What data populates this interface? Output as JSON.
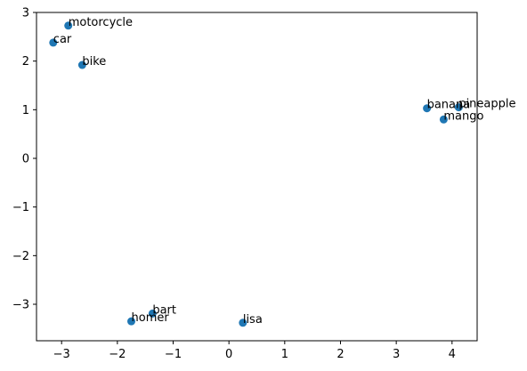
{
  "chart_data": {
    "type": "scatter",
    "title": "",
    "xlabel": "",
    "ylabel": "",
    "xlim": [
      -3.45,
      4.45
    ],
    "ylim": [
      -3.75,
      3.0
    ],
    "xticks": [
      -3,
      -2,
      -1,
      0,
      1,
      2,
      3,
      4
    ],
    "yticks": [
      -3,
      -2,
      -1,
      0,
      1,
      2,
      3
    ],
    "grid": false,
    "marker_color": "#1f77b4",
    "points": [
      {
        "x": -2.88,
        "y": 2.73,
        "label": "motorcycle"
      },
      {
        "x": -3.15,
        "y": 2.38,
        "label": "car"
      },
      {
        "x": -2.63,
        "y": 1.92,
        "label": "bike"
      },
      {
        "x": 3.55,
        "y": 1.03,
        "label": "banana"
      },
      {
        "x": 4.12,
        "y": 1.05,
        "label": "pineapple"
      },
      {
        "x": 3.85,
        "y": 0.8,
        "label": "mango"
      },
      {
        "x": -1.37,
        "y": -3.19,
        "label": "bart"
      },
      {
        "x": -1.75,
        "y": -3.35,
        "label": "homer"
      },
      {
        "x": 0.25,
        "y": -3.38,
        "label": "lisa"
      }
    ]
  }
}
